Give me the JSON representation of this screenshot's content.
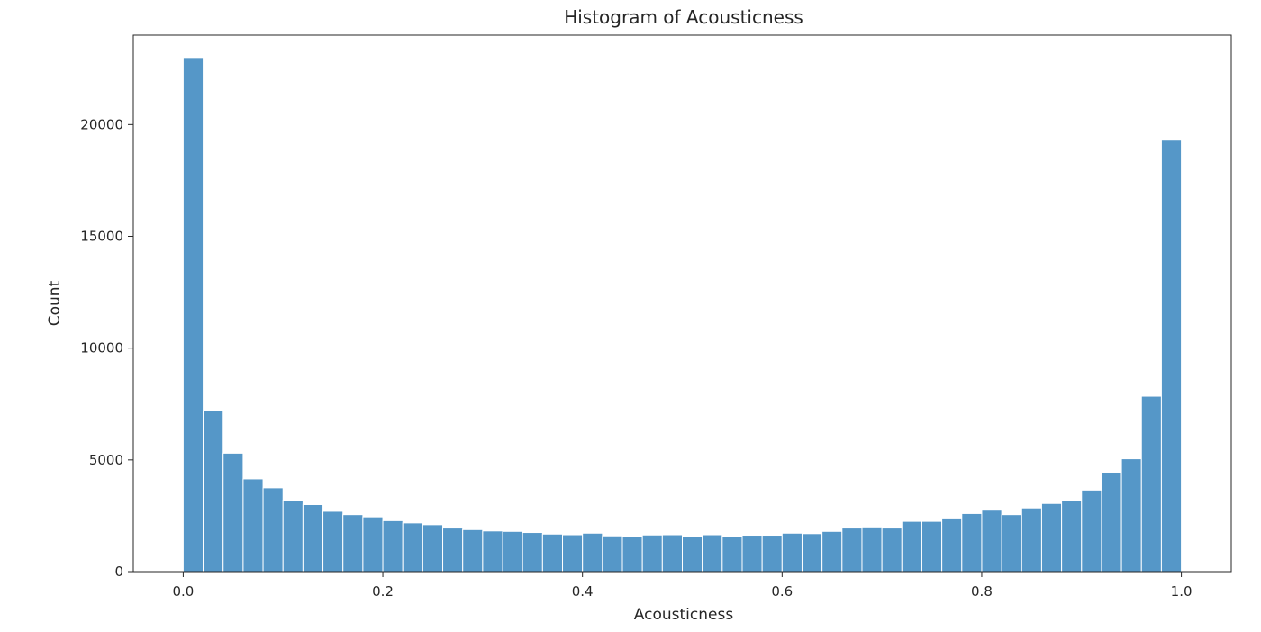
{
  "chart_data": {
    "type": "bar",
    "title": "Histogram of Acousticness",
    "xlabel": "Acousticness",
    "ylabel": "Count",
    "xlim": [
      -0.05,
      1.05
    ],
    "ylim": [
      0,
      24000
    ],
    "x_ticks": [
      {
        "value": 0.0,
        "label": "0.0"
      },
      {
        "value": 0.2,
        "label": "0.2"
      },
      {
        "value": 0.4,
        "label": "0.4"
      },
      {
        "value": 0.6,
        "label": "0.6"
      },
      {
        "value": 0.8,
        "label": "0.8"
      },
      {
        "value": 1.0,
        "label": "1.0"
      }
    ],
    "y_ticks": [
      {
        "value": 0,
        "label": "0"
      },
      {
        "value": 5000,
        "label": "5000"
      },
      {
        "value": 10000,
        "label": "10000"
      },
      {
        "value": 15000,
        "label": "15000"
      },
      {
        "value": 20000,
        "label": "20000"
      }
    ],
    "bin_start": 0.0,
    "bin_end": 1.0,
    "bin_count": 50,
    "values": [
      23000,
      7200,
      5300,
      4150,
      3750,
      3200,
      3000,
      2700,
      2550,
      2450,
      2280,
      2180,
      2100,
      1950,
      1880,
      1820,
      1800,
      1750,
      1680,
      1650,
      1720,
      1600,
      1580,
      1640,
      1650,
      1580,
      1650,
      1580,
      1630,
      1630,
      1720,
      1700,
      1800,
      1950,
      2000,
      1950,
      2250,
      2250,
      2400,
      2600,
      2750,
      2550,
      2850,
      3050,
      3200,
      3650,
      4450,
      5050,
      7850,
      19300
    ],
    "grid": false,
    "legend": "none",
    "colors": {
      "bar": "#5597c8",
      "axis": "#262626"
    }
  }
}
